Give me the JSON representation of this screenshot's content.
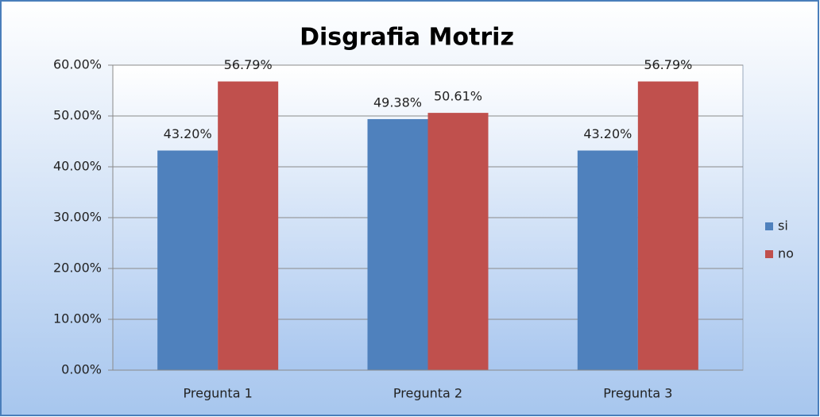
{
  "chart_data": {
    "type": "bar",
    "title": "Disgrafia Motriz",
    "categories": [
      "Pregunta 1",
      "Pregunta 2",
      "Pregunta 3"
    ],
    "series": [
      {
        "name": "si",
        "color": "#4f81bd",
        "values": [
          43.2,
          49.38,
          43.2
        ],
        "value_labels": [
          "43.20%",
          "49.38%",
          "43.20%"
        ]
      },
      {
        "name": "no",
        "color": "#c0504d",
        "values": [
          56.79,
          50.61,
          56.79
        ],
        "value_labels": [
          "56.79%",
          "50.61%",
          "56.79%"
        ]
      }
    ],
    "ylim": [
      0,
      60
    ],
    "yticks": [
      {
        "value": 0,
        "label": "0.00%"
      },
      {
        "value": 10,
        "label": "10.00%"
      },
      {
        "value": 20,
        "label": "20.00%"
      },
      {
        "value": 30,
        "label": "30.00%"
      },
      {
        "value": 40,
        "label": "40.00%"
      },
      {
        "value": 50,
        "label": "50.00%"
      },
      {
        "value": 60,
        "label": "60.00%"
      }
    ],
    "grid": true,
    "legend": "right"
  }
}
